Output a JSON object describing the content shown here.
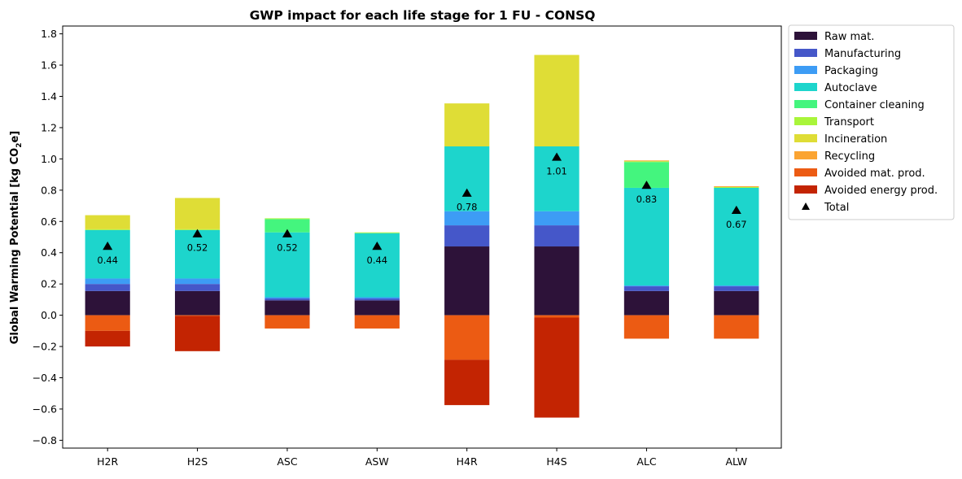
{
  "chart_data": {
    "type": "bar",
    "stacked": true,
    "title": "GWP impact for each life stage for 1 FU - CONSQ",
    "ylabel_main": "Global Warming Potential [kg CO",
    "ylabel_sub": "2",
    "ylabel_end": "e]",
    "ylim": [
      -0.85,
      1.85
    ],
    "yticks": [
      -0.8,
      -0.6,
      -0.4,
      -0.2,
      0.0,
      0.2,
      0.4,
      0.6,
      0.8,
      1.0,
      1.2,
      1.4,
      1.6,
      1.8
    ],
    "ytick_labels": [
      "−0.8",
      "−0.6",
      "−0.4",
      "−0.2",
      "0.0",
      "0.2",
      "0.4",
      "0.6",
      "0.8",
      "1.0",
      "1.2",
      "1.4",
      "1.6",
      "1.8"
    ],
    "grid": false,
    "legend_position": "outside-right",
    "categories": [
      "H2R",
      "H2S",
      "ASC",
      "ASW",
      "H4R",
      "H4S",
      "ALC",
      "ALW"
    ],
    "series": [
      {
        "name": "Raw mat.",
        "color": "#2d1239",
        "values": [
          0.155,
          0.155,
          0.095,
          0.095,
          0.44,
          0.44,
          0.155,
          0.155
        ]
      },
      {
        "name": "Manufacturing",
        "color": "#4557c9",
        "values": [
          0.045,
          0.045,
          0.012,
          0.012,
          0.135,
          0.135,
          0.03,
          0.03
        ]
      },
      {
        "name": "Packaging",
        "color": "#3d9cf5",
        "values": [
          0.035,
          0.035,
          0.008,
          0.008,
          0.09,
          0.09,
          0.005,
          0.005
        ]
      },
      {
        "name": "Autoclave",
        "color": "#1dd5cc",
        "values": [
          0.31,
          0.31,
          0.415,
          0.41,
          0.415,
          0.415,
          0.625,
          0.625
        ]
      },
      {
        "name": "Container cleaning",
        "color": "#44f57e",
        "values": [
          0.0,
          0.0,
          0.085,
          0.0,
          0.0,
          0.0,
          0.165,
          0.0
        ]
      },
      {
        "name": "Transport",
        "color": "#a9f53a",
        "values": [
          0.005,
          0.005,
          0.005,
          0.005,
          0.0,
          0.0,
          0.005,
          0.005
        ]
      },
      {
        "name": "Incineration",
        "color": "#dfdd36",
        "values": [
          0.09,
          0.2,
          0.0,
          0.0,
          0.275,
          0.585,
          0.0,
          0.0
        ]
      },
      {
        "name": "Recycling",
        "color": "#fba432",
        "values": [
          0.0,
          0.0,
          0.0,
          0.0,
          0.0,
          0.0,
          0.005,
          0.005
        ]
      },
      {
        "name": "Avoided mat. prod.",
        "color": "#ec5b13",
        "values": [
          -0.1,
          -0.005,
          -0.085,
          -0.085,
          -0.285,
          -0.015,
          -0.15,
          -0.15
        ]
      },
      {
        "name": "Avoided energy prod.",
        "color": "#c32402",
        "values": [
          -0.1,
          -0.225,
          0.0,
          0.0,
          -0.29,
          -0.64,
          0.0,
          0.0
        ]
      }
    ],
    "totals": [
      0.44,
      0.52,
      0.52,
      0.44,
      0.78,
      1.01,
      0.83,
      0.67
    ],
    "total_labels": [
      "0.44",
      "0.52",
      "0.52",
      "0.44",
      "0.78",
      "1.01",
      "0.83",
      "0.67"
    ],
    "total_legend_label": "Total",
    "total_marker": "triangle",
    "total_color": "#000000"
  }
}
